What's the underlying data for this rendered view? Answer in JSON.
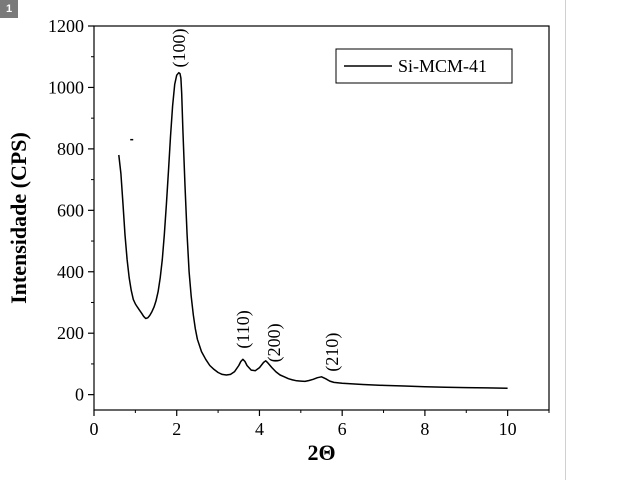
{
  "figure": {
    "number_badge": "1"
  },
  "chart_data": {
    "type": "line",
    "title": "",
    "xlabel": "2Θ",
    "ylabel": "Intensidade (CPS)",
    "xlim": [
      0,
      11
    ],
    "ylim": [
      -50,
      1200
    ],
    "xticks": [
      0,
      2,
      4,
      6,
      8,
      10
    ],
    "yticks": [
      0,
      200,
      400,
      600,
      800,
      1000,
      1200
    ],
    "grid": false,
    "legend": {
      "position": "top-right",
      "entries": [
        "Si-MCM-41"
      ]
    },
    "colors": {
      "line": "#000000"
    },
    "series": [
      {
        "name": "Si-MCM-41",
        "x": [
          0.6,
          0.65,
          0.7,
          0.75,
          0.8,
          0.85,
          0.9,
          0.95,
          1.0,
          1.05,
          1.1,
          1.15,
          1.2,
          1.25,
          1.3,
          1.35,
          1.4,
          1.45,
          1.5,
          1.55,
          1.6,
          1.65,
          1.7,
          1.75,
          1.8,
          1.85,
          1.9,
          1.95,
          2.0,
          2.05,
          2.08,
          2.1,
          2.12,
          2.15,
          2.2,
          2.25,
          2.3,
          2.35,
          2.4,
          2.45,
          2.5,
          2.6,
          2.7,
          2.8,
          2.9,
          3.0,
          3.1,
          3.2,
          3.3,
          3.4,
          3.5,
          3.55,
          3.6,
          3.65,
          3.7,
          3.8,
          3.9,
          4.0,
          4.1,
          4.15,
          4.2,
          4.3,
          4.4,
          4.5,
          4.6,
          4.7,
          4.8,
          4.9,
          5.0,
          5.1,
          5.2,
          5.3,
          5.4,
          5.5,
          5.6,
          5.7,
          5.8,
          6.0,
          6.5,
          7.0,
          7.5,
          8.0,
          8.5,
          9.0,
          9.5,
          10.0
        ],
        "values": [
          780,
          720,
          620,
          520,
          440,
          380,
          340,
          310,
          295,
          285,
          275,
          265,
          255,
          248,
          250,
          258,
          270,
          285,
          305,
          335,
          380,
          440,
          520,
          620,
          730,
          840,
          940,
          1010,
          1040,
          1048,
          1045,
          1030,
          980,
          860,
          680,
          520,
          400,
          320,
          260,
          215,
          180,
          140,
          115,
          95,
          82,
          72,
          66,
          64,
          66,
          75,
          95,
          108,
          115,
          108,
          95,
          80,
          78,
          88,
          105,
          110,
          104,
          88,
          74,
          64,
          58,
          52,
          48,
          45,
          44,
          43,
          46,
          50,
          55,
          58,
          52,
          44,
          40,
          37,
          33,
          30,
          28,
          26,
          24,
          23,
          22,
          21
        ]
      }
    ],
    "stray_point": {
      "x": 0.9,
      "y": 830
    },
    "annotations": [
      {
        "text": "(100)",
        "x": 2.2,
        "y": 1065
      },
      {
        "text": "(110)",
        "x": 3.75,
        "y": 150
      },
      {
        "text": "(200)",
        "x": 4.5,
        "y": 105
      },
      {
        "text": "(210)",
        "x": 5.9,
        "y": 75
      }
    ]
  }
}
